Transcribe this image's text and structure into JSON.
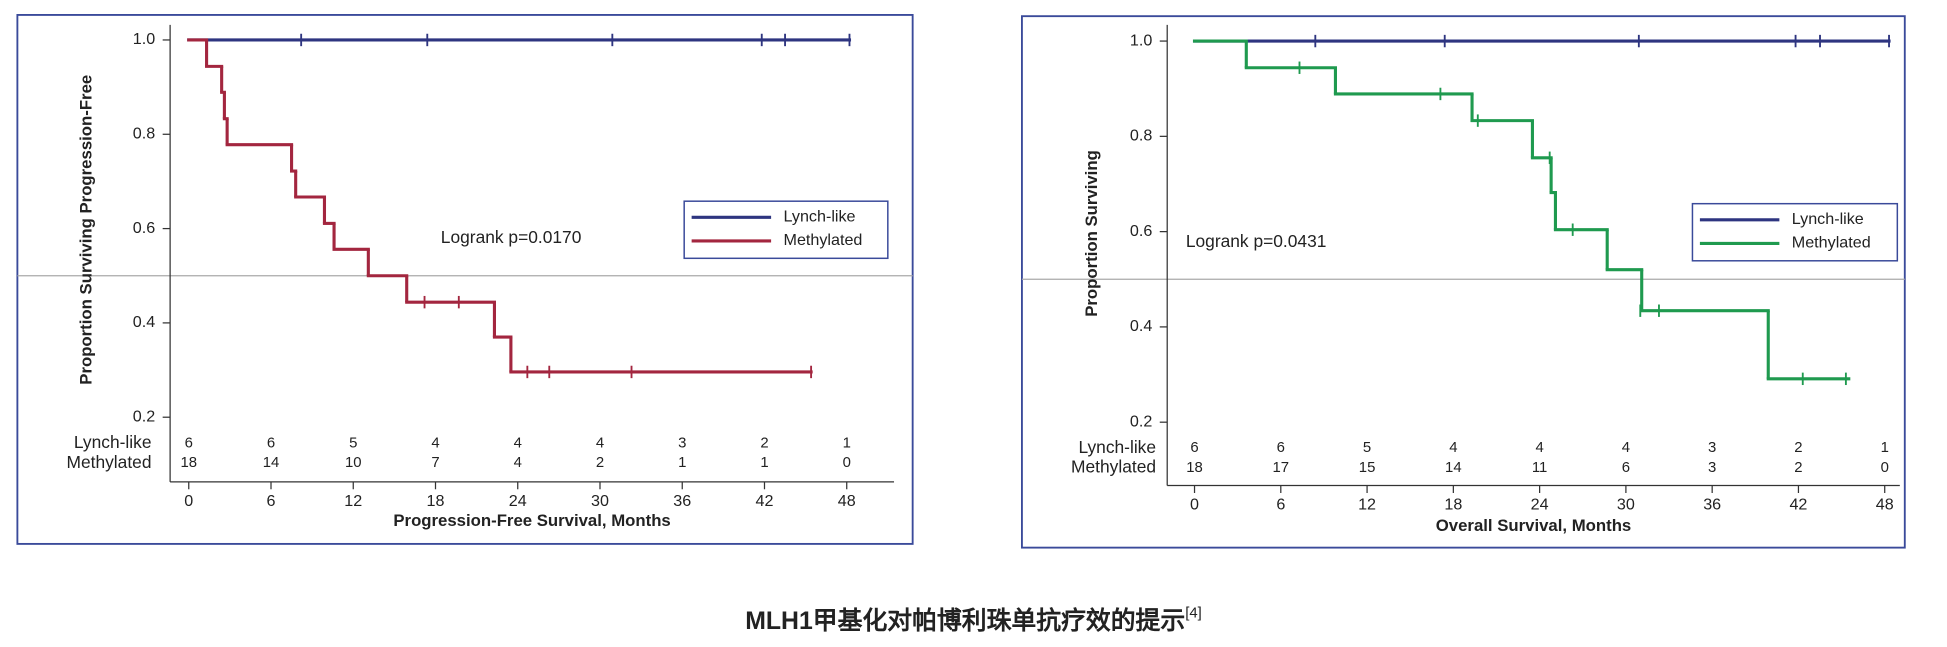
{
  "chart_data": [
    {
      "type": "step",
      "x_label": "Progression-Free Survival, Months",
      "y_label": "Proportion Surviving Progression-Free",
      "annotation": "Logrank p=0.0170",
      "reference_line": 0.5,
      "legend_position": "center right",
      "xlim": [
        -1.36,
        51.45
      ],
      "ylim": [
        0.063,
        1.032
      ],
      "xticks": [
        0,
        6,
        12,
        18,
        24,
        30,
        36,
        42,
        48
      ],
      "yticks": [
        0.2,
        0.4,
        0.6,
        0.8,
        {
          "value": 1,
          "label": "1.0"
        }
      ],
      "series": [
        {
          "name": "Lynch-like",
          "color": "#2e3580",
          "x": [
            0,
            48.2
          ],
          "values": [
            1,
            1
          ],
          "censored_x": [
            8.2,
            17.4,
            30.9,
            41.8,
            43.5,
            48.2
          ],
          "censored_values": [
            1,
            1,
            1,
            1,
            1,
            1
          ],
          "at_risk": [
            6,
            6,
            5,
            4,
            4,
            4,
            3,
            2,
            1
          ]
        },
        {
          "name": "Methylated",
          "color": "#a3263f",
          "x": [
            0,
            1.3,
            2.4,
            2.6,
            2.8,
            7.5,
            7.8,
            9.9,
            10.6,
            13.1,
            15.9,
            22.3,
            23.5,
            45.4
          ],
          "values": [
            1,
            0.944,
            0.889,
            0.833,
            0.778,
            0.722,
            0.667,
            0.611,
            0.556,
            0.5,
            0.444,
            0.37,
            0.296,
            0.296
          ],
          "censored_x": [
            17.2,
            19.7,
            24.7,
            26.3,
            32.3,
            45.4
          ],
          "censored_values": [
            0.444,
            0.444,
            0.296,
            0.296,
            0.296,
            0.296
          ],
          "at_risk": [
            18,
            14,
            10,
            7,
            4,
            2,
            1,
            1,
            0
          ]
        }
      ]
    },
    {
      "type": "step",
      "x_label": "Overall Survival, Months",
      "y_label": "Proportion Surviving",
      "annotation": "Logrank p=0.0431",
      "reference_line": 0.5,
      "legend_position": "center right",
      "xlim": [
        -1.9,
        49.05
      ],
      "ylim": [
        0.067,
        1.034
      ],
      "xticks": [
        0,
        6,
        12,
        18,
        24,
        30,
        36,
        42,
        48
      ],
      "yticks": [
        0.2,
        0.4,
        0.6,
        0.8,
        {
          "value": 1,
          "label": "1.0"
        }
      ],
      "series": [
        {
          "name": "Lynch-like",
          "color": "#2e3580",
          "x": [
            0,
            48.3
          ],
          "values": [
            1,
            1
          ],
          "censored_x": [
            8.4,
            17.4,
            30.9,
            41.8,
            43.5,
            48.3
          ],
          "censored_values": [
            1,
            1,
            1,
            1,
            1,
            1
          ],
          "at_risk": [
            6,
            6,
            5,
            4,
            4,
            4,
            3,
            2,
            1
          ]
        },
        {
          "name": "Methylated",
          "color": "#1f9a4f",
          "x": [
            0,
            3.6,
            9.8,
            19.3,
            23.5,
            24.8,
            25.1,
            28.7,
            31.1,
            39.9,
            45.5
          ],
          "values": [
            1,
            0.944,
            0.889,
            0.833,
            0.755,
            0.682,
            0.604,
            0.52,
            0.434,
            0.291,
            0.291
          ],
          "censored_x": [
            7.3,
            17.1,
            19.7,
            24.7,
            26.3,
            31.0,
            32.3,
            42.3,
            45.3
          ],
          "censored_values": [
            0.944,
            0.889,
            0.833,
            0.755,
            0.604,
            0.434,
            0.434,
            0.291,
            0.291
          ],
          "at_risk": [
            18,
            17,
            15,
            14,
            11,
            6,
            3,
            2,
            0
          ]
        }
      ]
    }
  ],
  "caption": {
    "text": "MLH1甲基化对帕博利珠单抗疗效的提示",
    "ref": "[4]"
  }
}
